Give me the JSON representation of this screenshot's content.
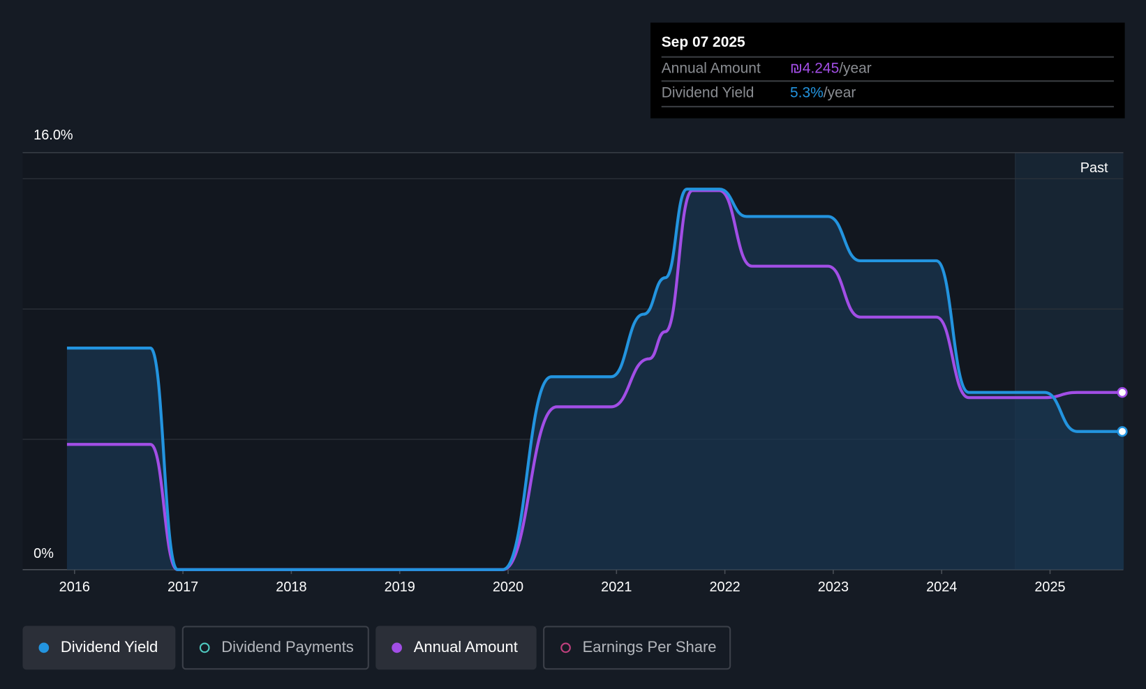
{
  "tooltip": {
    "date": "Sep 07 2025",
    "rows": [
      {
        "label": "Annual Amount",
        "value": "₪4.245",
        "unit": "/year",
        "color": "#a24ee6"
      },
      {
        "label": "Dividend Yield",
        "value": "5.3%",
        "unit": "/year",
        "color": "#2394df"
      }
    ]
  },
  "past_label": "Past",
  "legend": [
    {
      "label": "Dividend Yield",
      "color": "#2394df",
      "active": true
    },
    {
      "label": "Dividend Payments",
      "color": "#4fc9c0",
      "active": false
    },
    {
      "label": "Annual Amount",
      "color": "#a24ee6",
      "active": true
    },
    {
      "label": "Earnings Per Share",
      "color": "#c0407e",
      "active": false
    }
  ],
  "chart_data": {
    "type": "line",
    "ylabel_top": "16.0%",
    "ylabel_bottom": "0%",
    "ylim": [
      0,
      16
    ],
    "xlim": [
      2015.93,
      2025.68
    ],
    "past_start": 2024.68,
    "x_ticks": [
      "2016",
      "2017",
      "2018",
      "2019",
      "2020",
      "2021",
      "2022",
      "2023",
      "2024",
      "2025"
    ],
    "grid_values": [
      5,
      10,
      15
    ],
    "series": [
      {
        "name": "Dividend Yield",
        "unit": "%",
        "color": "#2394df",
        "points": [
          [
            2015.93,
            8.5
          ],
          [
            2016.7,
            8.5
          ],
          [
            2016.95,
            0
          ],
          [
            2019.95,
            0
          ],
          [
            2020.4,
            7.4
          ],
          [
            2020.95,
            7.4
          ],
          [
            2021.25,
            9.8
          ],
          [
            2021.45,
            11.2
          ],
          [
            2021.65,
            14.6
          ],
          [
            2021.95,
            14.6
          ],
          [
            2022.2,
            13.55
          ],
          [
            2022.95,
            13.55
          ],
          [
            2023.25,
            11.85
          ],
          [
            2023.95,
            11.85
          ],
          [
            2024.25,
            6.8
          ],
          [
            2024.95,
            6.8
          ],
          [
            2025.25,
            5.3
          ],
          [
            2025.68,
            5.3
          ]
        ]
      },
      {
        "name": "Annual Amount",
        "unit": "₪",
        "color": "#a24ee6",
        "ylim": [
          0,
          9.99
        ],
        "points": [
          [
            2015.93,
            3.0
          ],
          [
            2016.7,
            3.0
          ],
          [
            2016.95,
            0
          ],
          [
            2019.95,
            0
          ],
          [
            2020.45,
            3.9
          ],
          [
            2020.95,
            3.9
          ],
          [
            2021.3,
            5.05
          ],
          [
            2021.45,
            5.7
          ],
          [
            2021.7,
            9.08
          ],
          [
            2021.95,
            9.08
          ],
          [
            2022.25,
            7.27
          ],
          [
            2022.95,
            7.27
          ],
          [
            2023.25,
            6.05
          ],
          [
            2023.95,
            6.05
          ],
          [
            2024.25,
            4.12
          ],
          [
            2024.95,
            4.12
          ],
          [
            2025.25,
            4.245
          ],
          [
            2025.68,
            4.245
          ]
        ]
      }
    ]
  }
}
